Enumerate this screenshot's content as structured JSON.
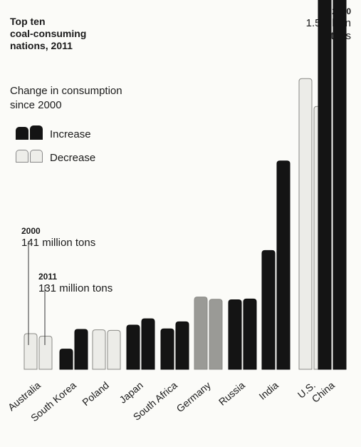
{
  "title": "Top ten\ncoal-consuming\nnations, 2011",
  "legend": {
    "title": "Change in consumption\nsince 2000",
    "increase": "Increase",
    "decrease": "Decrease"
  },
  "annotations": {
    "top_year": "2000",
    "top_value": "1.5 billion\ntons",
    "aus_2000_year": "2000",
    "aus_2000_value": "141 million tons",
    "aus_2011_year": "2011",
    "aus_2011_value": "131 million tons"
  },
  "colors": {
    "increase": "#141414",
    "decrease": "#ecece8",
    "decrease_germany": "#9a9a96"
  },
  "chart_data": {
    "type": "bar",
    "title": "Top ten coal-consuming nations, 2011",
    "categories": [
      "Australia",
      "South Korea",
      "Poland",
      "Japan",
      "South Africa",
      "Germany",
      "Russia",
      "India",
      "U.S.",
      "China"
    ],
    "series": [
      {
        "name": "2000",
        "values": [
          141,
          80,
          156,
          175,
          160,
          286,
          275,
          470,
          1150,
          1500
        ]
      },
      {
        "name": "2011",
        "values": [
          131,
          158,
          154,
          200,
          188,
          277,
          278,
          824,
          1040,
          1600
        ]
      }
    ],
    "change": [
      "decrease",
      "increase",
      "decrease",
      "increase",
      "increase",
      "decrease",
      "increase",
      "increase",
      "decrease",
      "increase"
    ],
    "unit": "million tons"
  }
}
